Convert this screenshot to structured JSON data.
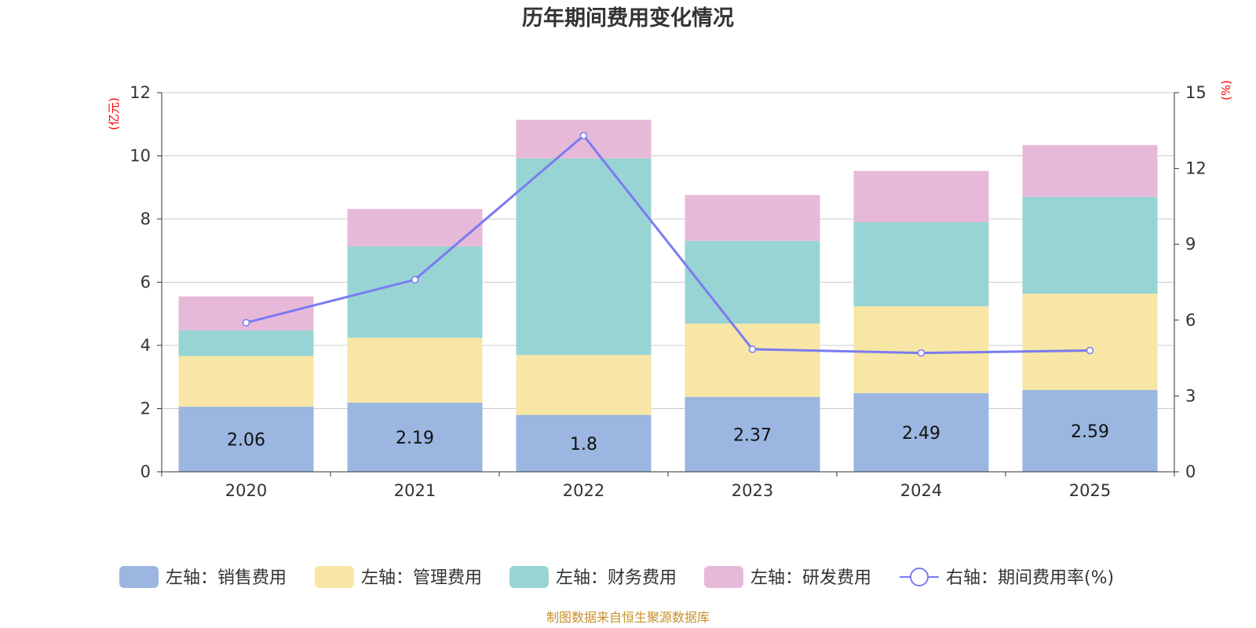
{
  "colors": {
    "sales": "#9bb6e0",
    "admin": "#f7e6a6",
    "finance": "#98d4d4",
    "rnd": "#e7b9d9",
    "rate_line": "#7b7bf0",
    "unit_label": "#ff0000",
    "source": "#c8902a",
    "grid": "#cccccc",
    "axis": "#333333"
  },
  "chart_data": {
    "type": "bar",
    "stacked": true,
    "title": "历年期间费用变化情况",
    "source": "制图数据来自恒生聚源数据库",
    "left_axis": {
      "unit": "(亿元)",
      "ylim": [
        0,
        12
      ],
      "ticks": [
        0,
        2,
        4,
        6,
        8,
        10,
        12
      ]
    },
    "right_axis": {
      "unit": "(%)",
      "ylim": [
        0,
        15
      ],
      "ticks": [
        0,
        3,
        6,
        9,
        12,
        15
      ]
    },
    "categories": [
      "2020",
      "2021",
      "2022",
      "2023",
      "2024",
      "2025"
    ],
    "series": [
      {
        "key": "sales",
        "name": "左轴：销售费用",
        "axis": "left",
        "values": [
          2.06,
          2.19,
          1.8,
          2.37,
          2.49,
          2.59
        ],
        "show_labels": true
      },
      {
        "key": "admin",
        "name": "左轴：管理费用",
        "axis": "left",
        "values": [
          1.6,
          2.05,
          1.9,
          2.32,
          2.75,
          3.05
        ]
      },
      {
        "key": "finance",
        "name": "左轴：财务费用",
        "axis": "left",
        "values": [
          0.82,
          2.9,
          6.22,
          2.62,
          2.66,
          3.06
        ]
      },
      {
        "key": "rnd",
        "name": "左轴：研发费用",
        "axis": "left",
        "values": [
          1.07,
          1.18,
          1.22,
          1.45,
          1.62,
          1.64
        ]
      }
    ],
    "line_series": {
      "name": "右轴：期间费用率(%)",
      "axis": "right",
      "values": [
        5.9,
        7.6,
        13.3,
        4.85,
        4.7,
        4.8
      ]
    },
    "legend_position": "bottom"
  }
}
